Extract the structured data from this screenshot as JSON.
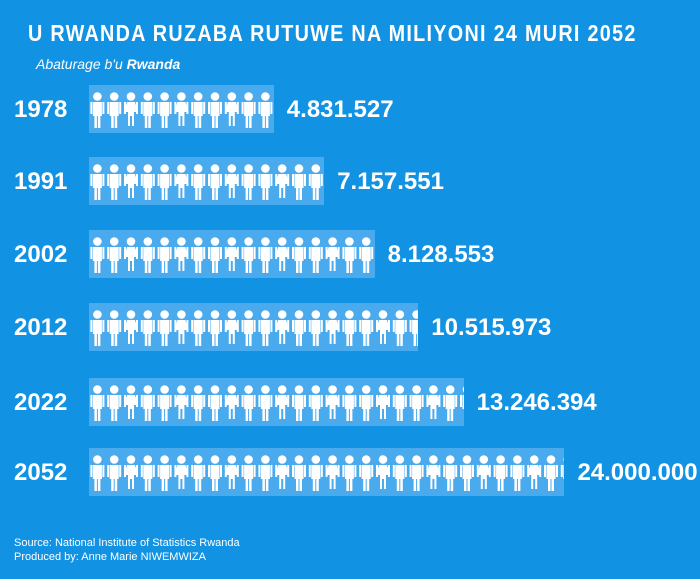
{
  "title": "U RWANDA RUZABA RUTUWE NA MILIYONI 24 MURI 2052",
  "subtitle_prefix": "Abaturage b'u ",
  "subtitle_bold": "Rwanda",
  "colors": {
    "background": "#1192e3",
    "bar": "#4aaaee",
    "figure": "#ffffff"
  },
  "chart_data": {
    "type": "bar",
    "orientation": "horizontal",
    "title": "U RWANDA RUZABA RUTUWE NA MILIYONI 24 MURI 2052",
    "ylabel": "Abaturage b'u Rwanda",
    "categories": [
      "1978",
      "1991",
      "2002",
      "2012",
      "2022",
      "2052"
    ],
    "values": [
      4831527,
      7157551,
      8128553,
      10515973,
      13246394,
      24000000
    ],
    "labels": [
      "4.831.527",
      "7.157.551",
      "8.128.553",
      "10.515.973",
      "13.246.394",
      "24.000.000"
    ],
    "icons_shown": [
      11,
      14,
      17,
      19.6,
      22.3,
      28.3
    ]
  },
  "footer": {
    "source": "Source: National Institute of Statistics Rwanda",
    "produced": "Produced by: Anne Marie NIWEMWIZA"
  }
}
